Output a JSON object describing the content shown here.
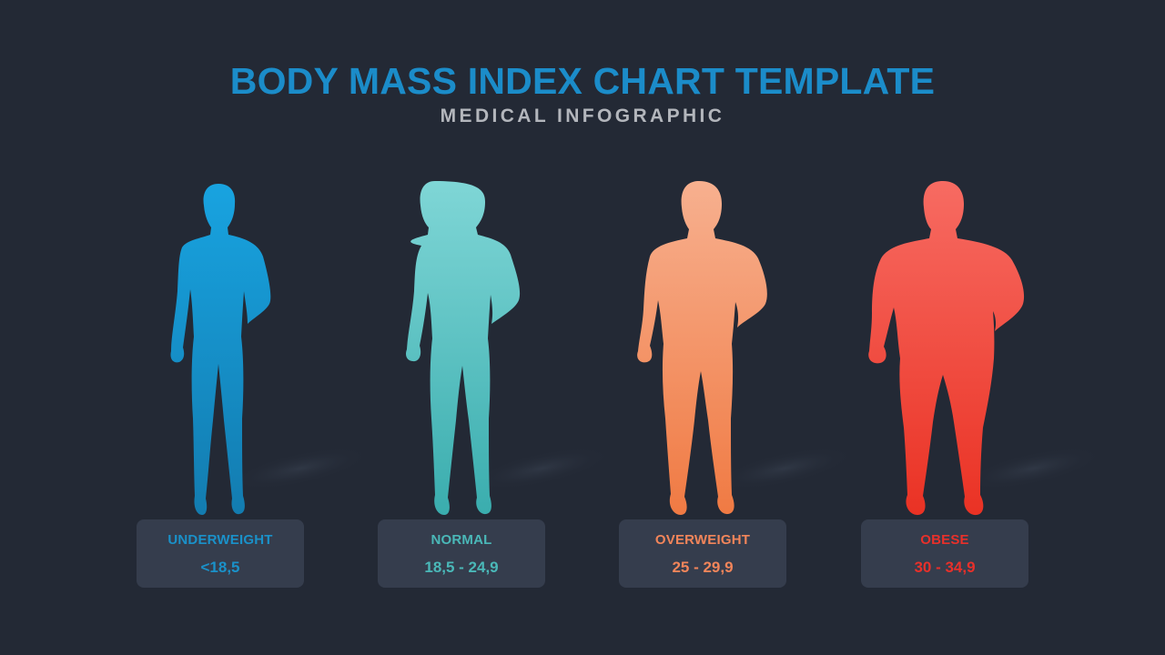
{
  "header": {
    "title": "BODY MASS INDEX CHART TEMPLATE",
    "subtitle": "MEDICAL INFOGRAPHIC"
  },
  "categories": [
    {
      "label": "UNDERWEIGHT",
      "range": "<18,5",
      "color": "#1a91c9",
      "figure_icon": "thin-person-icon"
    },
    {
      "label": "NORMAL",
      "range": "18,5 - 24,9",
      "color": "#4ab8b8",
      "figure_icon": "normal-person-icon"
    },
    {
      "label": "OVERWEIGHT",
      "range": "25 - 29,9",
      "color": "#f2855a",
      "figure_icon": "overweight-person-icon"
    },
    {
      "label": "OBESE",
      "range": "30 - 34,9",
      "color": "#e8302a",
      "figure_icon": "obese-person-icon"
    }
  ]
}
